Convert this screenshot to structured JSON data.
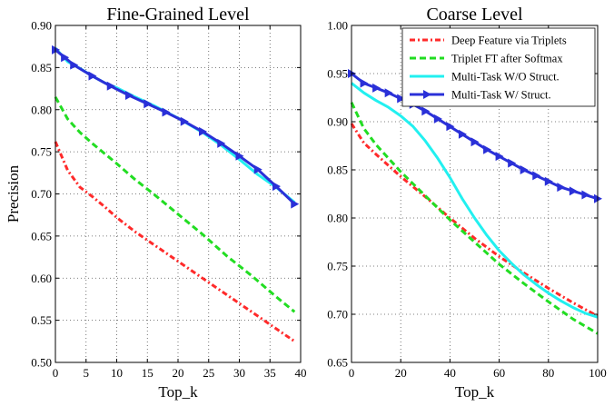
{
  "chart_data": [
    {
      "type": "line",
      "title": "Fine-Grained Level",
      "xlabel": "Top_k",
      "ylabel": "Precision",
      "xlim": [
        0,
        40
      ],
      "ylim": [
        0.5,
        0.9
      ],
      "xticks": [
        0,
        5,
        10,
        15,
        20,
        25,
        30,
        35,
        40
      ],
      "xtick_labels": [
        "0",
        "5",
        "10",
        "15",
        "20",
        "25",
        "30",
        "35",
        "40"
      ],
      "yticks": [
        0.5,
        0.55,
        0.6,
        0.65,
        0.7,
        0.75,
        0.8,
        0.85,
        0.9
      ],
      "ytick_labels": [
        "0.50",
        "0.55",
        "0.60",
        "0.65",
        "0.70",
        "0.75",
        "0.80",
        "0.85",
        "0.90"
      ],
      "grid": true,
      "series": [
        {
          "name": "Deep Feature via Triplets",
          "color": "#ff2a2a",
          "style": "dashdot",
          "x": [
            0,
            2,
            4,
            6,
            8,
            10,
            13,
            16,
            20,
            24,
            28,
            32,
            36,
            39
          ],
          "y": [
            0.762,
            0.728,
            0.708,
            0.697,
            0.685,
            0.672,
            0.655,
            0.64,
            0.62,
            0.6,
            0.58,
            0.56,
            0.54,
            0.525
          ]
        },
        {
          "name": "Triplet FT after Softmax",
          "color": "#22dd22",
          "style": "dashed",
          "x": [
            0,
            2,
            4,
            6,
            8,
            10,
            13,
            16,
            20,
            24,
            28,
            32,
            36,
            39
          ],
          "y": [
            0.815,
            0.789,
            0.773,
            0.76,
            0.748,
            0.736,
            0.717,
            0.7,
            0.676,
            0.652,
            0.626,
            0.603,
            0.578,
            0.56
          ]
        },
        {
          "name": "Multi-Task W/O Struct.",
          "color": "#22f0f0",
          "style": "solid",
          "x": [
            0,
            2,
            4,
            6,
            8,
            10,
            13,
            16,
            20,
            24,
            27,
            30,
            33,
            36,
            39
          ],
          "y": [
            0.873,
            0.857,
            0.849,
            0.84,
            0.832,
            0.826,
            0.815,
            0.805,
            0.79,
            0.773,
            0.758,
            0.741,
            0.723,
            0.708,
            0.69
          ]
        },
        {
          "name": "Multi-Task W/ Struct.",
          "color": "#2a30d8",
          "style": "solid-marker",
          "x": [
            0,
            1.5,
            3,
            6,
            9,
            12,
            15,
            18,
            21,
            24,
            27,
            30,
            33,
            36,
            39
          ],
          "y": [
            0.871,
            0.862,
            0.853,
            0.84,
            0.828,
            0.817,
            0.807,
            0.797,
            0.786,
            0.774,
            0.76,
            0.745,
            0.729,
            0.709,
            0.688
          ]
        }
      ]
    },
    {
      "type": "line",
      "title": "Coarse Level",
      "xlabel": "Top_k",
      "ylabel": "",
      "xlim": [
        0,
        100
      ],
      "ylim": [
        0.65,
        1.0
      ],
      "xticks": [
        0,
        20,
        40,
        60,
        80,
        100
      ],
      "xtick_labels": [
        "0",
        "20",
        "40",
        "60",
        "80",
        "100"
      ],
      "yticks": [
        0.65,
        0.7,
        0.75,
        0.8,
        0.85,
        0.9,
        0.95,
        1.0
      ],
      "ytick_labels": [
        "0.65",
        "0.70",
        "0.75",
        "0.80",
        "0.85",
        "0.90",
        "0.95",
        "1.00"
      ],
      "grid": true,
      "legend": "top-right",
      "series": [
        {
          "name": "Deep Feature via Triplets",
          "color": "#ff2a2a",
          "style": "dashdot",
          "x": [
            0,
            5,
            10,
            20,
            30,
            40,
            50,
            60,
            70,
            80,
            90,
            100
          ],
          "y": [
            0.898,
            0.878,
            0.866,
            0.843,
            0.822,
            0.8,
            0.779,
            0.76,
            0.743,
            0.727,
            0.712,
            0.698
          ]
        },
        {
          "name": "Triplet FT after Softmax",
          "color": "#22dd22",
          "style": "dashed",
          "x": [
            0,
            5,
            10,
            20,
            30,
            40,
            50,
            60,
            70,
            80,
            90,
            100
          ],
          "y": [
            0.92,
            0.893,
            0.876,
            0.848,
            0.823,
            0.798,
            0.775,
            0.752,
            0.732,
            0.713,
            0.695,
            0.68
          ]
        },
        {
          "name": "Multi-Task W/O Struct.",
          "color": "#22f0f0",
          "style": "solid",
          "x": [
            0,
            5,
            10,
            15,
            20,
            25,
            30,
            35,
            40,
            45,
            50,
            55,
            60,
            65,
            70,
            75,
            80,
            85,
            90,
            95,
            100
          ],
          "y": [
            0.94,
            0.93,
            0.922,
            0.915,
            0.906,
            0.895,
            0.88,
            0.862,
            0.842,
            0.82,
            0.8,
            0.782,
            0.766,
            0.753,
            0.741,
            0.731,
            0.722,
            0.714,
            0.707,
            0.701,
            0.697
          ]
        },
        {
          "name": "Multi-Task W/ Struct.",
          "color": "#2a30d8",
          "style": "solid-marker",
          "x": [
            0,
            5,
            10,
            15,
            20,
            25,
            30,
            35,
            40,
            45,
            50,
            55,
            60,
            65,
            70,
            75,
            80,
            85,
            90,
            95,
            100
          ],
          "y": [
            0.95,
            0.94,
            0.935,
            0.93,
            0.924,
            0.918,
            0.911,
            0.903,
            0.895,
            0.887,
            0.879,
            0.871,
            0.864,
            0.857,
            0.85,
            0.844,
            0.838,
            0.832,
            0.828,
            0.824,
            0.82
          ]
        }
      ]
    }
  ]
}
